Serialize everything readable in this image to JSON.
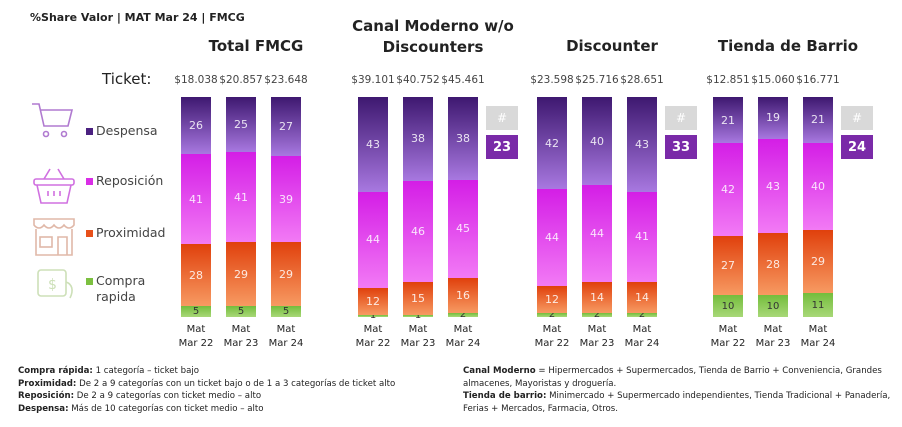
{
  "header": "%Share Valor | MAT Mar 24 | FMCG",
  "ticket_label": "Ticket:",
  "legend": [
    {
      "label": "Despensa",
      "icon": "shopping-cart-icon",
      "color": "#4b2180"
    },
    {
      "label": "Reposición",
      "icon": "basket-icon",
      "color": "#d92ee6"
    },
    {
      "label": "Proximidad",
      "icon": "store-icon",
      "color": "#e8501a"
    },
    {
      "label": "Compra rapida",
      "icon": "hand-money-icon",
      "color": "#7cc040"
    }
  ],
  "chart_data": {
    "type": "bar",
    "stacked": true,
    "stack_order": [
      "Compra rapida",
      "Proximidad",
      "Reposición",
      "Despensa"
    ],
    "groups": [
      {
        "title": "Total FMCG",
        "tickets": [
          "$18.038",
          "$20.857",
          "$23.648"
        ],
        "categories": [
          "Mat Mar 22",
          "Mat Mar 23",
          "Mat Mar 24"
        ],
        "series": [
          {
            "name": "Despensa",
            "values": [
              26,
              25,
              27
            ]
          },
          {
            "name": "Reposición",
            "values": [
              41,
              41,
              39
            ]
          },
          {
            "name": "Proximidad",
            "values": [
              28,
              29,
              29
            ]
          },
          {
            "name": "Compra rapida",
            "values": [
              5,
              5,
              5
            ]
          }
        ]
      },
      {
        "title": "Canal Moderno w/o Discounters",
        "tickets": [
          "$39.101",
          "$40.752",
          "$45.461"
        ],
        "categories": [
          "Mat Mar 22",
          "Mat Mar 23",
          "Mat Mar 24"
        ],
        "hash": "#",
        "badge": "23",
        "series": [
          {
            "name": "Despensa",
            "values": [
              43,
              38,
              38
            ]
          },
          {
            "name": "Reposición",
            "values": [
              44,
              46,
              45
            ]
          },
          {
            "name": "Proximidad",
            "values": [
              12,
              15,
              16
            ]
          },
          {
            "name": "Compra rapida",
            "values": [
              1,
              1,
              2
            ]
          }
        ]
      },
      {
        "title": "Discounter",
        "tickets": [
          "$23.598",
          "$25.716",
          "$28.651"
        ],
        "categories": [
          "Mat Mar 22",
          "Mat Mar 23",
          "Mat Mar 24"
        ],
        "hash": "#",
        "badge": "33",
        "series": [
          {
            "name": "Despensa",
            "values": [
              42,
              40,
              43
            ]
          },
          {
            "name": "Reposición",
            "values": [
              44,
              44,
              41
            ]
          },
          {
            "name": "Proximidad",
            "values": [
              12,
              14,
              14
            ]
          },
          {
            "name": "Compra rapida",
            "values": [
              2,
              2,
              2
            ]
          }
        ]
      },
      {
        "title": "Tienda de Barrio",
        "tickets": [
          "$12.851",
          "$15.060",
          "$16.771"
        ],
        "categories": [
          "Mat Mar 22",
          "Mat Mar 23",
          "Mat Mar 24"
        ],
        "hash": "#",
        "badge": "24",
        "series": [
          {
            "name": "Despensa",
            "values": [
              21,
              19,
              21
            ]
          },
          {
            "name": "Reposición",
            "values": [
              42,
              43,
              40
            ]
          },
          {
            "name": "Proximidad",
            "values": [
              27,
              28,
              29
            ]
          },
          {
            "name": "Compra rapida",
            "values": [
              10,
              10,
              11
            ]
          }
        ]
      }
    ]
  },
  "notes_left": [
    {
      "term": "Compra rápida:",
      "text": " 1 categoría – ticket bajo"
    },
    {
      "term": "Proximidad:",
      "text": " De 2 a 9 categorías con un ticket bajo o de 1 a 3 categorías de ticket alto"
    },
    {
      "term": "Reposición:",
      "text": " De 2 a 9 categorías con ticket medio – alto"
    },
    {
      "term": "Despensa:",
      "text": " Más de 10 categorías con ticket medio – alto"
    }
  ],
  "notes_right": [
    {
      "term": "Canal Moderno",
      "text": " = Hipermercados + Supermercados, Tienda de Barrio + Conveniencia, Grandes almacenes, Mayoristas y droguería."
    },
    {
      "term": "Tienda de barrio:",
      "text": " Minimercado + Supermercado independientes, Tienda Tradicional + Panadería, Ferias + Mercados, Farmacia, Otros."
    }
  ]
}
